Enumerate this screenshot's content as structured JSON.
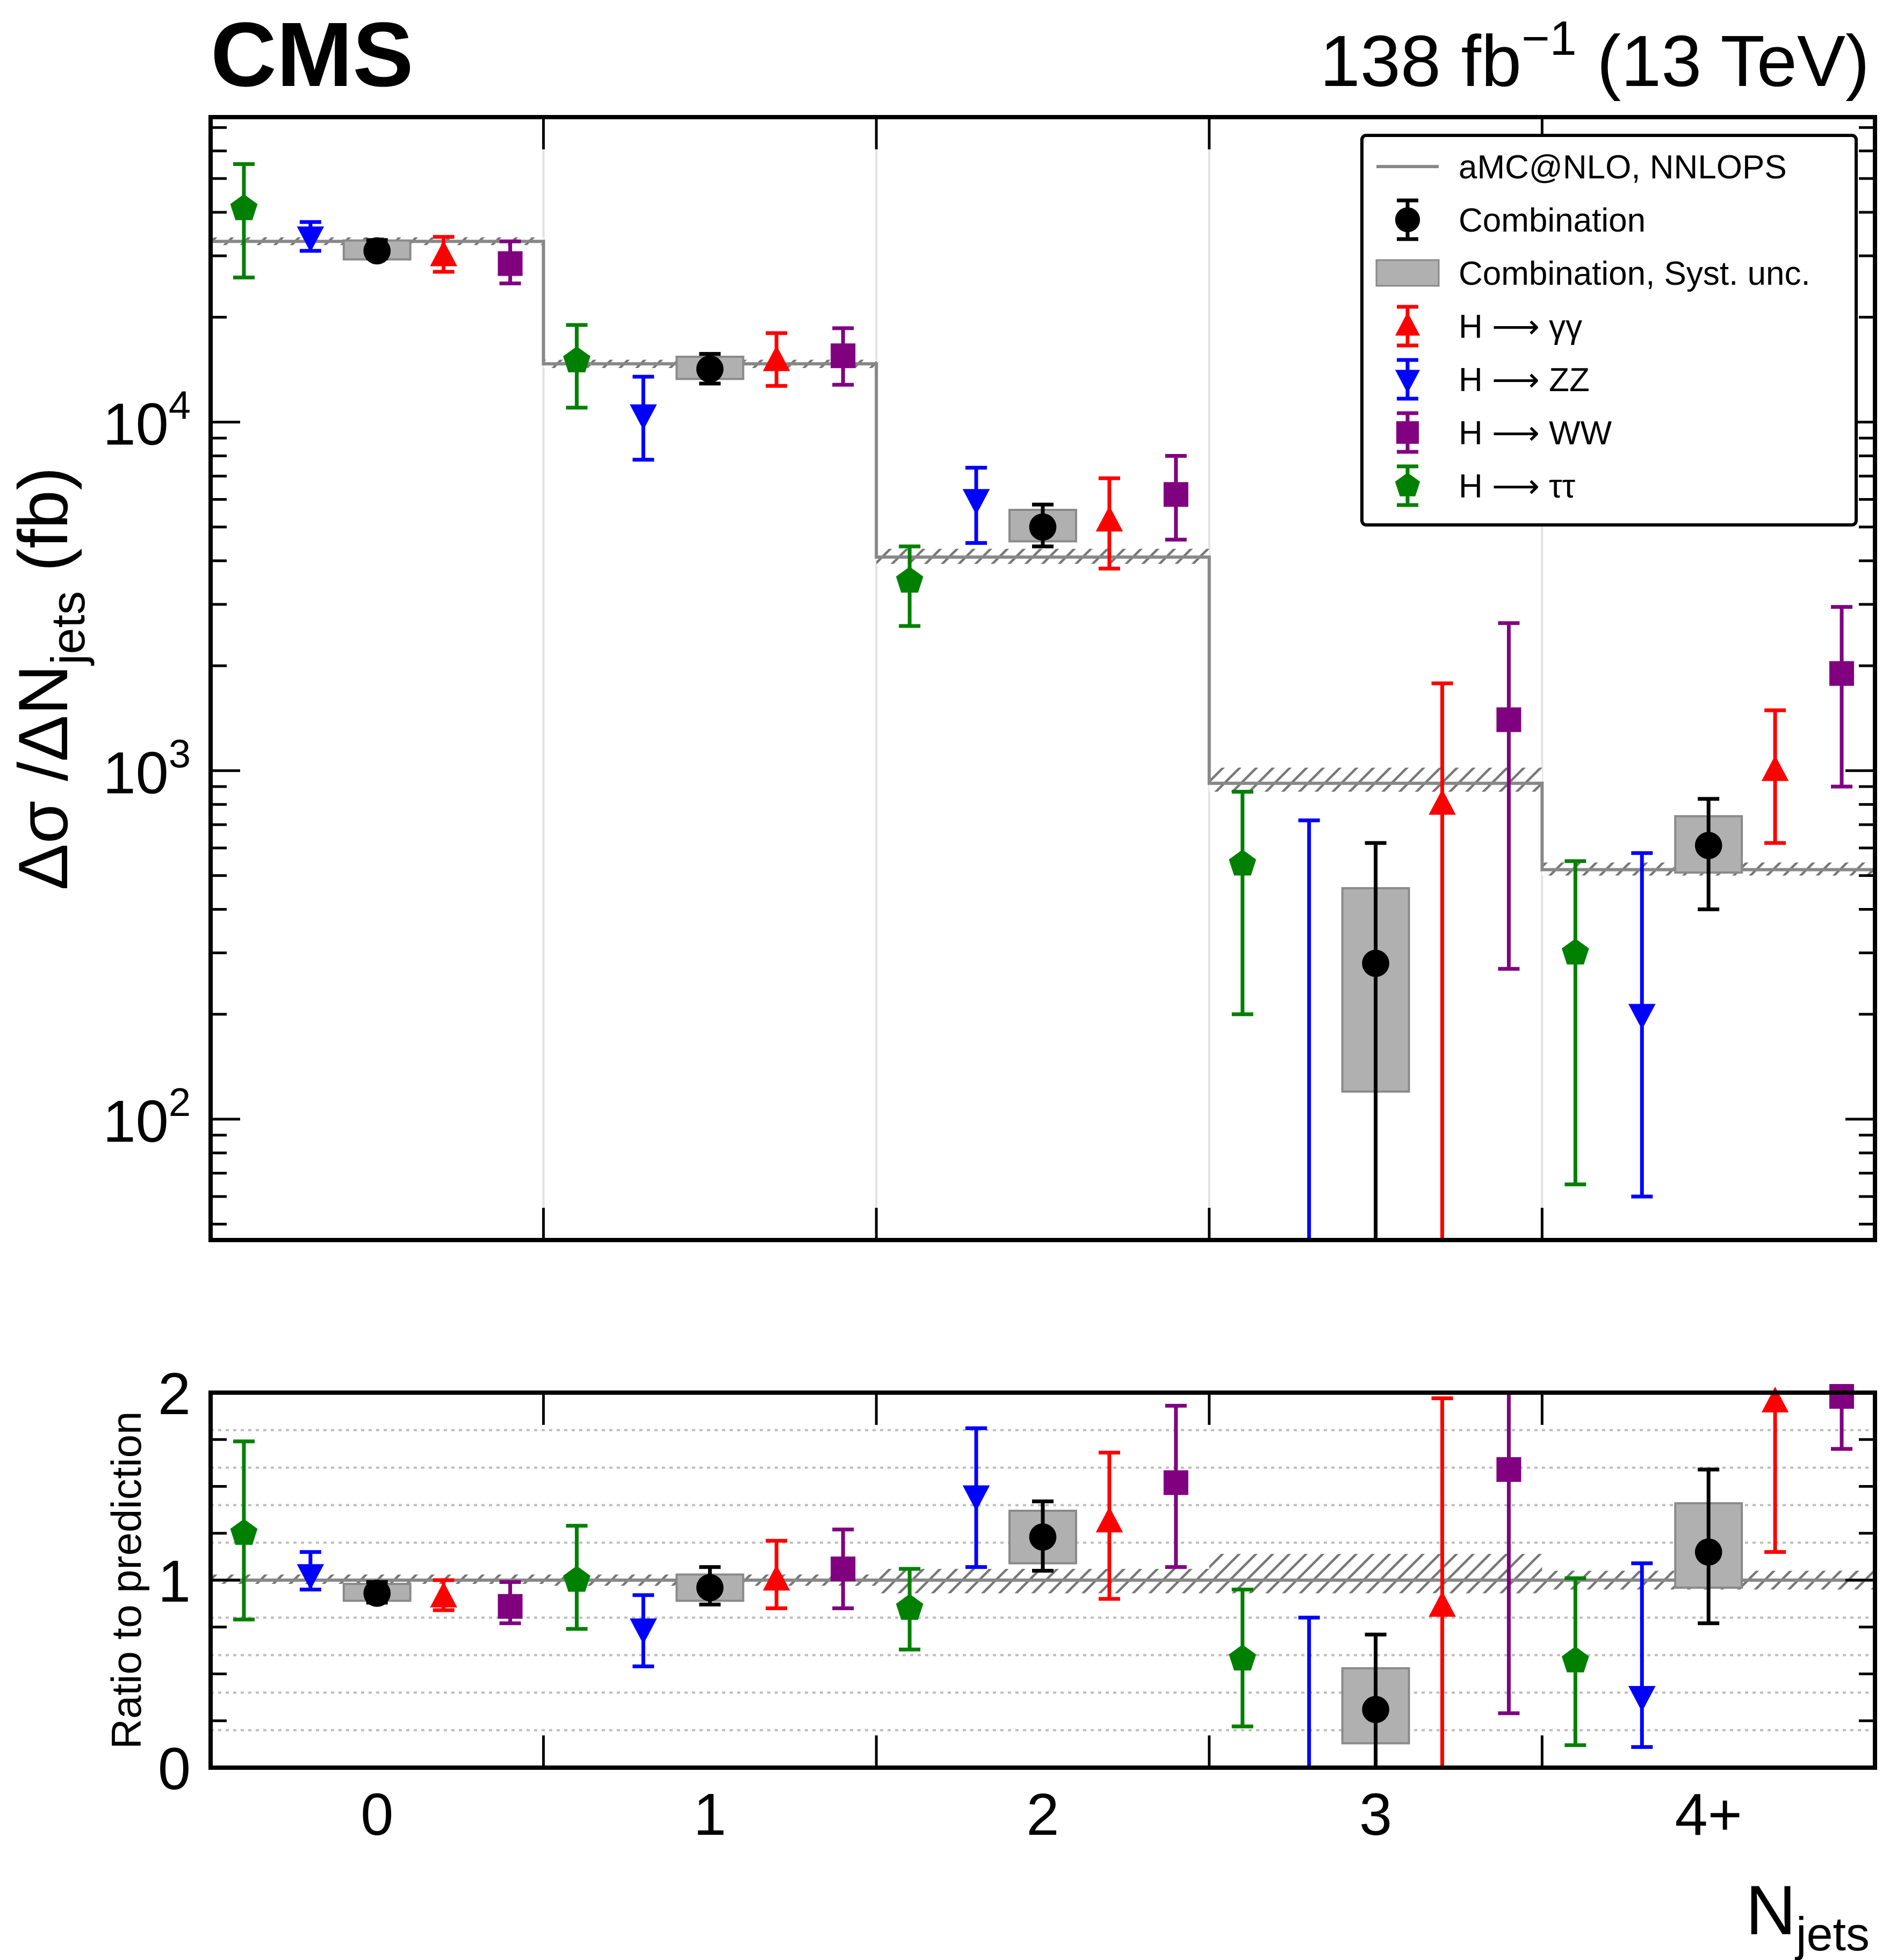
{
  "header": {
    "experiment": "CMS",
    "lumi_prefix": "138 fb",
    "lumi_exp": "−1",
    "lumi_suffix": " (13 TeV)"
  },
  "axes": {
    "top_ylabel_main": "Δσ /ΔN",
    "top_ylabel_sub": "jets",
    "top_ylabel_unit": " (fb)",
    "top_ticks": [
      {
        "value": 100,
        "base": "10",
        "exp": "2"
      },
      {
        "value": 1000,
        "base": "10",
        "exp": "3"
      },
      {
        "value": 10000,
        "base": "10",
        "exp": "4"
      }
    ],
    "bottom_ylabel": "Ratio to prediction",
    "bottom_ticks": [
      "0",
      "1",
      "2"
    ],
    "xlabel_main": "N",
    "xlabel_sub": "jets"
  },
  "legend": {
    "items": [
      {
        "key": "pred",
        "label": "aMC@NLO, NNLOPS"
      },
      {
        "key": "comb",
        "label": "Combination"
      },
      {
        "key": "syst",
        "label": "Combination, Syst. unc."
      },
      {
        "key": "gg",
        "label": "H ⟶ γγ"
      },
      {
        "key": "zz",
        "label": "H ⟶ ZZ"
      },
      {
        "key": "ww",
        "label": "H ⟶ WW"
      },
      {
        "key": "tt",
        "label": "H ⟶ ττ"
      }
    ]
  },
  "chart_data": {
    "type": "scatter",
    "categories": [
      "0",
      "1",
      "2",
      "3",
      "4+"
    ],
    "xlabel": "Njets",
    "top_panel": {
      "ylabel": "Δσ/ΔNjets (fb)",
      "yscale": "log",
      "ylim": [
        45,
        75000
      ],
      "prediction": {
        "name": "aMC@NLO, NNLOPS",
        "color": "#888888",
        "values": [
          33000,
          14700,
          4100,
          920,
          520
        ],
        "band_low": [
          32200,
          14300,
          3920,
          870,
          500
        ],
        "band_high": [
          33900,
          15100,
          4330,
          1020,
          545
        ]
      },
      "series": [
        {
          "key": "comb",
          "name": "Combination",
          "color": "#000000",
          "marker": "circle",
          "offset": 0.0,
          "values": [
            31000,
            14200,
            5000,
            280,
            610
          ],
          "err_low": [
            29500,
            12900,
            4400,
            45,
            400
          ],
          "err_high": [
            33300,
            15700,
            5800,
            620,
            830
          ],
          "syst_low": [
            29300,
            13300,
            4550,
            120,
            510
          ],
          "syst_high": [
            33200,
            15400,
            5600,
            460,
            740
          ]
        },
        {
          "key": "gg",
          "name": "H ⟶ γγ",
          "color": "#ff0000",
          "marker": "triangle-up",
          "offset": 0.2,
          "values": [
            30000,
            15000,
            5200,
            800,
            1000
          ],
          "err_low": [
            27000,
            12700,
            3800,
            45,
            620
          ],
          "err_high": [
            34000,
            18000,
            6900,
            1780,
            1490
          ]
        },
        {
          "key": "zz",
          "name": "H ⟶ ZZ",
          "color": "#0000ff",
          "marker": "triangle-down",
          "offset": -0.2,
          "values": [
            34000,
            10500,
            6000,
            null,
            200
          ],
          "err_low": [
            31000,
            7800,
            4500,
            45,
            60
          ],
          "err_high": [
            37500,
            13500,
            7400,
            720,
            580
          ]
        },
        {
          "key": "ww",
          "name": "H ⟶ WW",
          "color": "#800080",
          "marker": "square",
          "offset": 0.4,
          "values": [
            28500,
            15500,
            6200,
            1400,
            1900
          ],
          "err_low": [
            25000,
            12800,
            4600,
            270,
            900
          ],
          "err_high": [
            33000,
            18600,
            8000,
            2650,
            2950
          ]
        },
        {
          "key": "tt",
          "name": "H ⟶ ττ",
          "color": "#008000",
          "marker": "pentagon",
          "offset": -0.4,
          "values": [
            41000,
            15000,
            3500,
            540,
            300
          ],
          "err_low": [
            26000,
            11000,
            2600,
            200,
            65
          ],
          "err_high": [
            55000,
            19000,
            4400,
            870,
            550
          ]
        }
      ]
    },
    "bottom_panel": {
      "ylabel": "Ratio to prediction",
      "ylim": [
        0,
        2
      ],
      "prediction_band_low": [
        0.98,
        0.97,
        0.93,
        0.93,
        0.95
      ],
      "prediction_band_high": [
        1.03,
        1.03,
        1.06,
        1.14,
        1.05
      ],
      "series": [
        {
          "key": "comb",
          "values": [
            0.93,
            0.96,
            1.23,
            0.31,
            1.15
          ],
          "err_low": [
            0.88,
            0.87,
            1.05,
            0.0,
            0.77
          ],
          "err_high": [
            0.99,
            1.07,
            1.42,
            0.71,
            1.59
          ],
          "syst_low": [
            0.89,
            0.89,
            1.09,
            0.13,
            0.96
          ],
          "syst_high": [
            0.98,
            1.03,
            1.37,
            0.53,
            1.41
          ]
        },
        {
          "key": "gg",
          "values": [
            0.91,
            1.0,
            1.31,
            0.86,
            1.95
          ],
          "err_low": [
            0.84,
            0.85,
            0.9,
            0.0,
            1.15
          ],
          "err_high": [
            1.0,
            1.21,
            1.68,
            1.97,
            2.0
          ]
        },
        {
          "key": "zz",
          "values": [
            1.03,
            0.74,
            1.45,
            null,
            0.38
          ],
          "err_low": [
            0.95,
            0.54,
            1.07,
            0.0,
            0.11
          ],
          "err_high": [
            1.15,
            0.92,
            1.81,
            0.8,
            1.09
          ]
        },
        {
          "key": "ww",
          "values": [
            0.86,
            1.06,
            1.52,
            1.59,
            1.98
          ],
          "err_low": [
            0.77,
            0.85,
            1.07,
            0.29,
            1.7
          ],
          "err_high": [
            0.99,
            1.27,
            1.93,
            2.0,
            2.0
          ]
        },
        {
          "key": "tt",
          "values": [
            1.25,
            1.0,
            0.85,
            0.58,
            0.57
          ],
          "err_low": [
            0.79,
            0.74,
            0.63,
            0.22,
            0.12
          ],
          "err_high": [
            1.74,
            1.29,
            1.06,
            0.95,
            1.01
          ]
        }
      ]
    },
    "grid": {
      "top": "vertical lines between bins",
      "bottom": "horizontal dotted lines"
    },
    "legend_position": "top-right"
  }
}
